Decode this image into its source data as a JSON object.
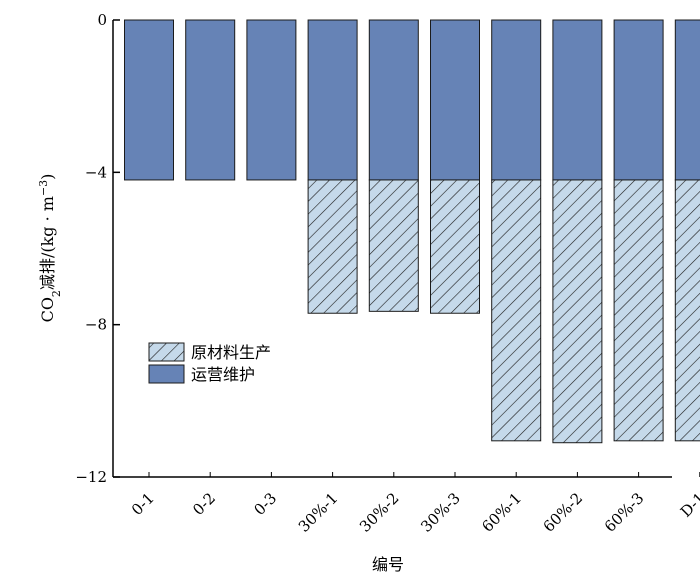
{
  "chart_data": {
    "type": "bar",
    "stacked": true,
    "categories": [
      "0-1",
      "0-2",
      "0-3",
      "30%-1",
      "30%-2",
      "30%-3",
      "60%-1",
      "60%-2",
      "60%-3",
      "D-1"
    ],
    "series": [
      {
        "name": "运营维护",
        "values": [
          -4.2,
          -4.2,
          -4.2,
          -4.2,
          -4.2,
          -4.2,
          -4.2,
          -4.2,
          -4.2,
          -4.2
        ],
        "color": "#6683b6",
        "pattern": "solid"
      },
      {
        "name": "原材料生产",
        "values": [
          0,
          0,
          0,
          -3.5,
          -3.45,
          -3.5,
          -6.85,
          -6.9,
          -6.85,
          -6.85
        ],
        "color": "#c5d9ea",
        "pattern": "hatch"
      }
    ],
    "xlabel": "编号",
    "ylabel_main": "CO",
    "ylabel_sub": "2",
    "ylabel_rest": "减排/(kg · m",
    "ylabel_sup": "−3",
    "ylabel_end": ")",
    "ylim": [
      -12,
      0
    ],
    "yticks": [
      0,
      -4,
      -8,
      -12
    ],
    "ytick_labels": [
      "0",
      "−4",
      "−8",
      "−12"
    ],
    "grid": false,
    "legend_position": "left-middle",
    "legend_order": [
      1,
      0
    ]
  }
}
